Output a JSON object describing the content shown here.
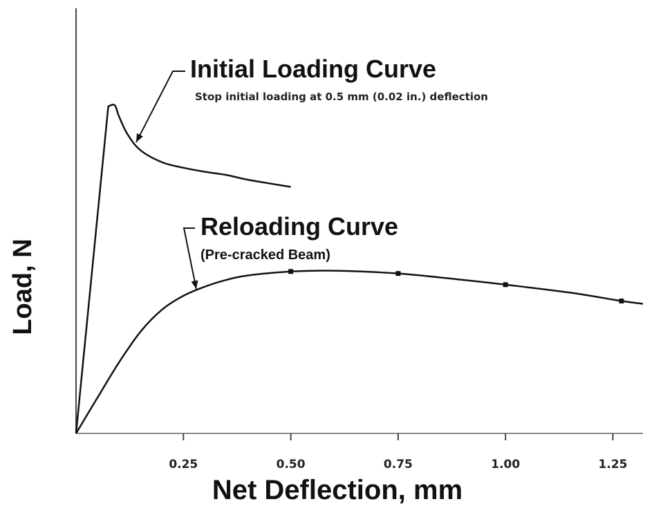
{
  "chart_data": {
    "type": "line",
    "xlabel": "Net Deflection, mm",
    "ylabel": "Load, N",
    "x_ticks": [
      "0.25",
      "0.50",
      "0.75",
      "1.00",
      "1.25"
    ],
    "x_tick_values": [
      0.25,
      0.5,
      0.75,
      1.0,
      1.25
    ],
    "xlim": [
      0,
      1.32
    ],
    "ylim": [
      0,
      100
    ],
    "grid": false,
    "series": [
      {
        "name": "Initial Loading Curve",
        "points": [
          [
            0,
            0
          ],
          [
            0.075,
            82
          ],
          [
            0.09,
            82.3
          ],
          [
            0.1,
            79.5
          ],
          [
            0.12,
            75
          ],
          [
            0.15,
            71
          ],
          [
            0.2,
            68
          ],
          [
            0.25,
            66.6
          ],
          [
            0.3,
            65.6
          ],
          [
            0.35,
            64.8
          ],
          [
            0.4,
            63.6
          ],
          [
            0.5,
            61.8
          ]
        ]
      },
      {
        "name": "Reloading Curve",
        "points": [
          [
            0,
            0
          ],
          [
            0.05,
            9
          ],
          [
            0.1,
            17.8
          ],
          [
            0.15,
            25.5
          ],
          [
            0.2,
            31
          ],
          [
            0.25,
            34.5
          ],
          [
            0.3,
            36.8
          ],
          [
            0.35,
            38.5
          ],
          [
            0.4,
            39.6
          ],
          [
            0.5,
            40.6
          ],
          [
            0.6,
            40.8
          ],
          [
            0.75,
            40.1
          ],
          [
            0.9,
            38.5
          ],
          [
            1.0,
            37.3
          ],
          [
            1.15,
            35.3
          ],
          [
            1.27,
            33.2
          ],
          [
            1.32,
            32.5
          ]
        ],
        "markers": [
          [
            0.5,
            40.6
          ],
          [
            0.75,
            40.1
          ],
          [
            1.0,
            37.3
          ],
          [
            1.27,
            33.2
          ]
        ]
      }
    ],
    "annotations": [
      {
        "id": "initial",
        "title": "Initial Loading Curve",
        "subtitle": "Stop initial loading at 0.5 mm (0.02 in.) deflection",
        "target": [
          0.14,
          73
        ]
      },
      {
        "id": "reload",
        "title": "Reloading Curve",
        "subtitle": "(Pre-cracked Beam)",
        "target": [
          0.28,
          36.2
        ]
      }
    ]
  }
}
